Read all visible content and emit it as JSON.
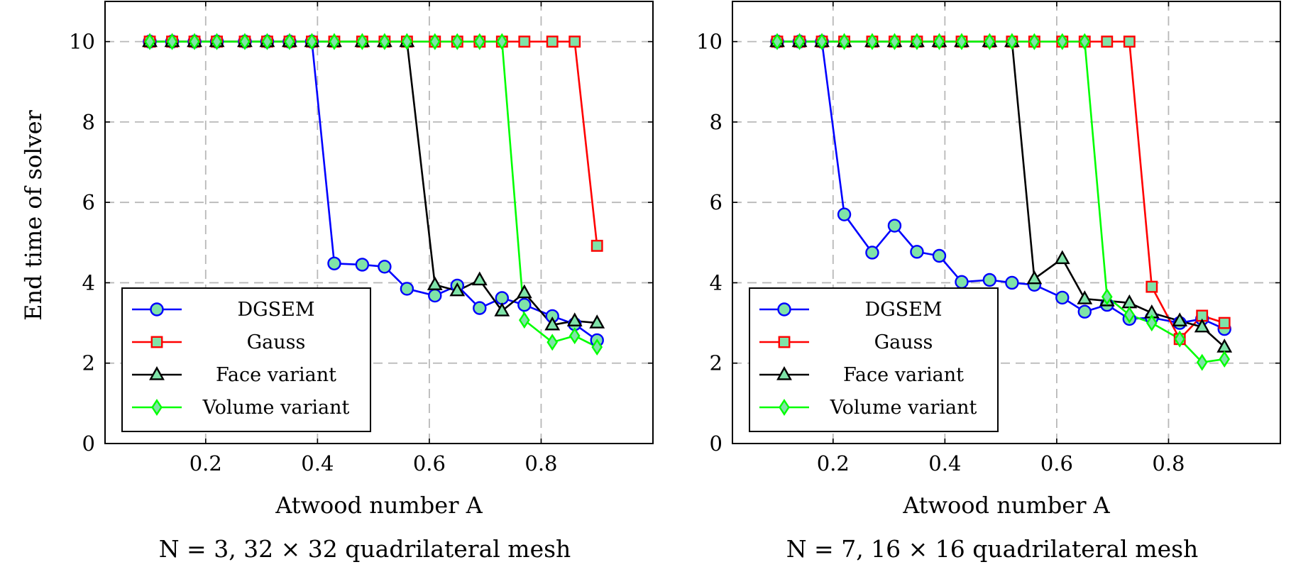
{
  "colors": {
    "dgsem": "#0000ff",
    "gauss": "#ff0000",
    "face": "#000000",
    "volume": "#00ff00",
    "marker_fill": "#7fe3a8"
  },
  "chart_data": [
    {
      "type": "line",
      "title": "",
      "xlabel": "Atwood number A",
      "ylabel": "End time of solver",
      "caption": "N = 3, 32 × 32 quadrilateral mesh",
      "xlim": [
        0.02,
        1.0
      ],
      "ylim": [
        0,
        11
      ],
      "xticks": [
        "0.2",
        "0.4",
        "0.6",
        "0.8"
      ],
      "yticks": [
        "0",
        "2",
        "4",
        "6",
        "8",
        "10"
      ],
      "grid": true,
      "legend_position": "bottom-left",
      "series": [
        {
          "name": "DGSEM",
          "marker": "circle",
          "x": [
            0.1,
            0.14,
            0.18,
            0.22,
            0.27,
            0.31,
            0.35,
            0.39,
            0.43,
            0.48,
            0.52,
            0.56,
            0.61,
            0.65,
            0.69,
            0.73,
            0.77,
            0.82,
            0.86,
            0.9
          ],
          "y": [
            10,
            10,
            10,
            10,
            10,
            10,
            10,
            10,
            4.48,
            4.45,
            4.4,
            3.85,
            3.68,
            3.93,
            3.37,
            3.62,
            3.45,
            3.17,
            2.97,
            2.57
          ]
        },
        {
          "name": "Gauss",
          "marker": "square",
          "x": [
            0.1,
            0.14,
            0.18,
            0.22,
            0.27,
            0.31,
            0.35,
            0.39,
            0.43,
            0.48,
            0.52,
            0.56,
            0.61,
            0.65,
            0.69,
            0.73,
            0.77,
            0.82,
            0.86,
            0.9
          ],
          "y": [
            10,
            10,
            10,
            10,
            10,
            10,
            10,
            10,
            10,
            10,
            10,
            10,
            10,
            10,
            10,
            10,
            10,
            10,
            10,
            4.92
          ]
        },
        {
          "name": "Face variant",
          "marker": "triangle",
          "x": [
            0.1,
            0.14,
            0.18,
            0.22,
            0.27,
            0.31,
            0.35,
            0.39,
            0.43,
            0.48,
            0.52,
            0.56,
            0.61,
            0.65,
            0.69,
            0.73,
            0.77,
            0.82,
            0.86,
            0.9
          ],
          "y": [
            10,
            10,
            10,
            10,
            10,
            10,
            10,
            10,
            10,
            10,
            10,
            10,
            3.95,
            3.8,
            4.07,
            3.3,
            3.75,
            2.95,
            3.05,
            3.0
          ]
        },
        {
          "name": "Volume variant",
          "marker": "diamond",
          "x": [
            0.1,
            0.14,
            0.18,
            0.22,
            0.27,
            0.31,
            0.35,
            0.39,
            0.43,
            0.48,
            0.52,
            0.56,
            0.61,
            0.65,
            0.69,
            0.73,
            0.77,
            0.82,
            0.86,
            0.9
          ],
          "y": [
            10,
            10,
            10,
            10,
            10,
            10,
            10,
            10,
            10,
            10,
            10,
            10,
            10,
            10,
            10,
            10,
            3.07,
            2.52,
            2.68,
            2.4
          ]
        }
      ]
    },
    {
      "type": "line",
      "title": "",
      "xlabel": "Atwood number A",
      "ylabel": "",
      "caption": "N = 7, 16 × 16 quadrilateral mesh",
      "xlim": [
        0.02,
        1.0
      ],
      "ylim": [
        0,
        11
      ],
      "xticks": [
        "0.2",
        "0.4",
        "0.6",
        "0.8"
      ],
      "yticks": [
        "0",
        "2",
        "4",
        "6",
        "8",
        "10"
      ],
      "grid": true,
      "legend_position": "bottom-left",
      "series": [
        {
          "name": "DGSEM",
          "marker": "circle",
          "x": [
            0.1,
            0.14,
            0.18,
            0.22,
            0.27,
            0.31,
            0.35,
            0.39,
            0.43,
            0.48,
            0.52,
            0.56,
            0.61,
            0.65,
            0.69,
            0.73,
            0.77,
            0.82,
            0.86,
            0.9
          ],
          "y": [
            10,
            10,
            10,
            5.7,
            4.75,
            5.42,
            4.77,
            4.67,
            4.02,
            4.07,
            4.0,
            3.95,
            3.63,
            3.28,
            3.45,
            3.1,
            3.13,
            3.0,
            3.1,
            2.85
          ]
        },
        {
          "name": "Gauss",
          "marker": "square",
          "x": [
            0.1,
            0.14,
            0.18,
            0.22,
            0.27,
            0.31,
            0.35,
            0.39,
            0.43,
            0.48,
            0.52,
            0.56,
            0.61,
            0.65,
            0.69,
            0.73,
            0.77,
            0.82,
            0.86,
            0.9
          ],
          "y": [
            10,
            10,
            10,
            10,
            10,
            10,
            10,
            10,
            10,
            10,
            10,
            10,
            10,
            10,
            10,
            10,
            3.9,
            2.6,
            3.18,
            3.0
          ]
        },
        {
          "name": "Face variant",
          "marker": "triangle",
          "x": [
            0.1,
            0.14,
            0.18,
            0.22,
            0.27,
            0.31,
            0.35,
            0.39,
            0.43,
            0.48,
            0.52,
            0.56,
            0.61,
            0.65,
            0.69,
            0.73,
            0.77,
            0.82,
            0.86,
            0.9
          ],
          "y": [
            10,
            10,
            10,
            10,
            10,
            10,
            10,
            10,
            10,
            10,
            10,
            4.1,
            4.6,
            3.6,
            3.55,
            3.5,
            3.25,
            3.05,
            2.9,
            2.4
          ]
        },
        {
          "name": "Volume variant",
          "marker": "diamond",
          "x": [
            0.1,
            0.14,
            0.18,
            0.22,
            0.27,
            0.31,
            0.35,
            0.39,
            0.43,
            0.48,
            0.52,
            0.56,
            0.61,
            0.65,
            0.69,
            0.73,
            0.77,
            0.82,
            0.86,
            0.9
          ],
          "y": [
            10,
            10,
            10,
            10,
            10,
            10,
            10,
            10,
            10,
            10,
            10,
            10,
            10,
            10,
            3.65,
            3.2,
            3.0,
            2.6,
            2.02,
            2.1
          ]
        }
      ]
    }
  ]
}
